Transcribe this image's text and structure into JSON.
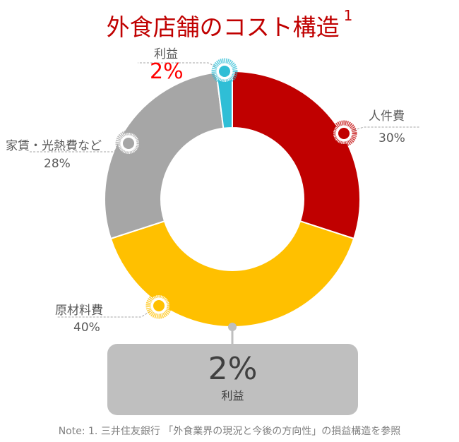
{
  "title": "外食店舗のコスト構造",
  "title_footnote": "1",
  "chart_data": {
    "type": "pie",
    "donut": true,
    "categories": [
      "人件費",
      "原材料費",
      "家賃・光熱費など",
      "利益"
    ],
    "values": [
      30,
      40,
      28,
      2
    ],
    "labels": [
      "30%",
      "40%",
      "28%",
      "2%"
    ],
    "colors": [
      "#c00000",
      "#ffc000",
      "#a6a6a6",
      "#2fbed6"
    ],
    "start": "12 o'clock, clockwise"
  },
  "callout": {
    "value": "2%",
    "label": "利益"
  },
  "note": "Note: 1. 三井住友銀行 「外食業界の現況と今後の方向性」の損益構造を参照",
  "highlight_color": "#ff0000"
}
